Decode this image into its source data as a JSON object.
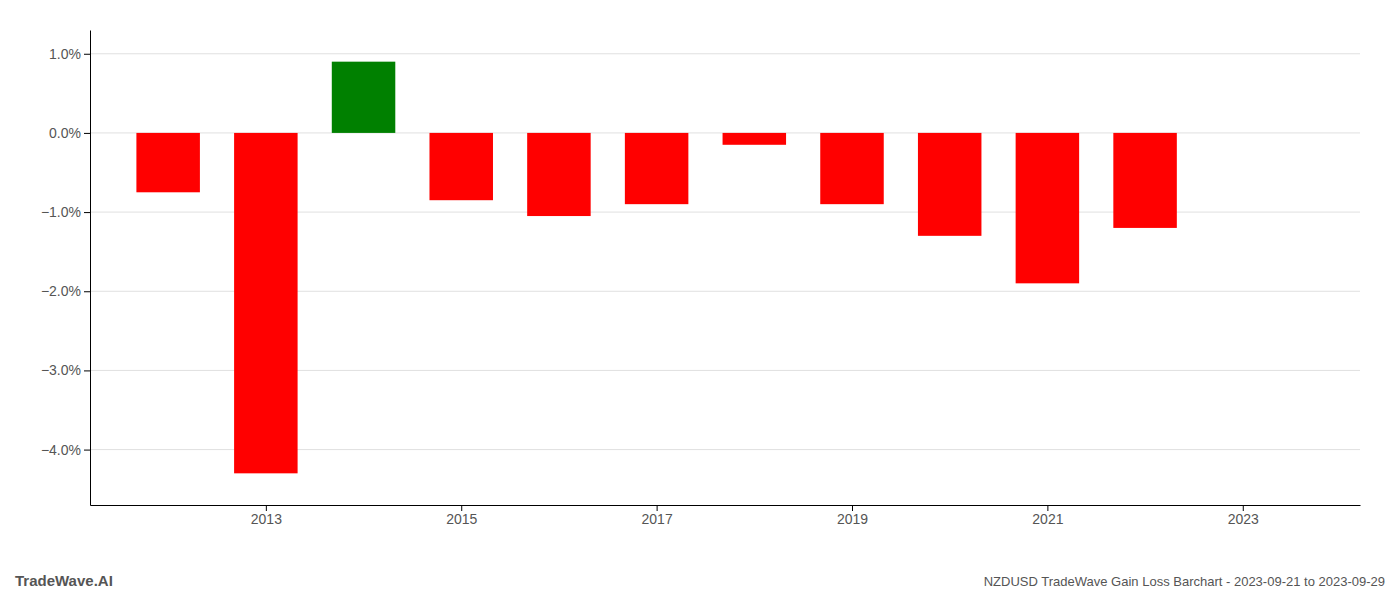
{
  "chart_data": {
    "type": "bar",
    "title": "NZDUSD TradeWave Gain Loss Barchart - 2023-09-21 to 2023-09-29",
    "annotations": [
      "TradeWave.AI"
    ],
    "x": [
      2012,
      2013,
      2014,
      2015,
      2016,
      2017,
      2018,
      2019,
      2020,
      2021,
      2022,
      2023
    ],
    "values": [
      -0.0075,
      -0.043,
      0.009,
      -0.0085,
      -0.0105,
      -0.009,
      -0.0015,
      -0.009,
      -0.013,
      -0.019,
      -0.012,
      -0.0
    ],
    "colors": [
      "#ff0000",
      "#ff0000",
      "#008000",
      "#ff0000",
      "#ff0000",
      "#ff0000",
      "#ff0000",
      "#ff0000",
      "#ff0000",
      "#ff0000",
      "#ff0000",
      "#ff0000"
    ],
    "xlim": [
      2011.2,
      2024.2
    ],
    "xticks": [
      2013,
      2015,
      2017,
      2019,
      2021,
      2023
    ],
    "ylim": [
      -0.047,
      0.013
    ],
    "yticks": [
      {
        "value": 0.01,
        "label": "1.0%"
      },
      {
        "value": 0.0,
        "label": "0.0%"
      },
      {
        "value": -0.01,
        "label": "−1.0%"
      },
      {
        "value": -0.02,
        "label": "−2.0%"
      },
      {
        "value": -0.03,
        "label": "−3.0%"
      },
      {
        "value": -0.04,
        "label": "−4.0%"
      }
    ],
    "grid": true
  }
}
